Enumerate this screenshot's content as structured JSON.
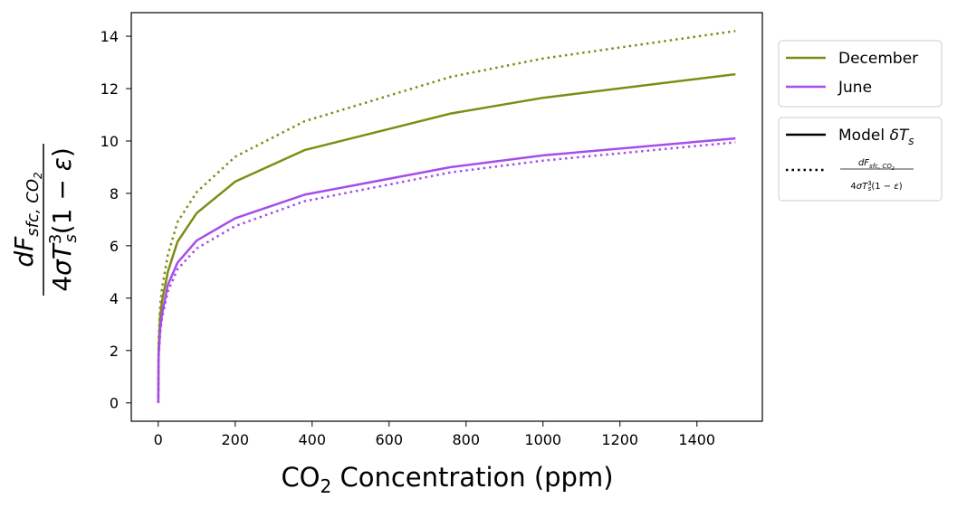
{
  "chart_data": {
    "type": "line",
    "xlabel": "CO2 Concentration (ppm)",
    "xlabel_main": "CO",
    "xlabel_sub": "2",
    "xlabel_rest": " Concentration (ppm)",
    "ylabel": "dF_{sfc,CO2} / (4σT_s^3(1−ε))",
    "xlim": [
      -70,
      1570
    ],
    "ylim": [
      -0.7,
      14.9
    ],
    "xticks": [
      0,
      200,
      400,
      600,
      800,
      1000,
      1200,
      1400
    ],
    "yticks": [
      0,
      2,
      4,
      6,
      8,
      10,
      12,
      14
    ],
    "grid": false,
    "legend_placement": "right-outside",
    "x": [
      0,
      1,
      5,
      10,
      25,
      50,
      100,
      200,
      380,
      760,
      1000,
      1500
    ],
    "series": [
      {
        "name": "December",
        "style": "solid",
        "color": "#7f8c14",
        "values": [
          0.0,
          2.1,
          3.3,
          3.9,
          5.0,
          6.15,
          7.25,
          8.45,
          9.65,
          11.05,
          11.65,
          12.55
        ]
      },
      {
        "name": "December",
        "style": "dotted",
        "color": "#7f8c14",
        "values": [
          0.0,
          2.4,
          3.7,
          4.4,
          5.65,
          6.9,
          8.05,
          9.4,
          10.75,
          12.45,
          13.15,
          14.2
        ]
      },
      {
        "name": "June",
        "style": "solid",
        "color": "#a64dea",
        "values": [
          0.0,
          1.8,
          2.8,
          3.4,
          4.5,
          5.35,
          6.2,
          7.05,
          7.95,
          9.0,
          9.45,
          10.1
        ]
      },
      {
        "name": "June",
        "style": "dotted",
        "color": "#a64dea",
        "values": [
          0.0,
          1.7,
          2.65,
          3.25,
          4.25,
          5.1,
          5.9,
          6.75,
          7.7,
          8.8,
          9.25,
          9.95
        ]
      }
    ],
    "legend_colors": [
      {
        "label": "December",
        "color": "#7f8c14"
      },
      {
        "label": "June",
        "color": "#a64dea"
      }
    ],
    "legend_styles": [
      {
        "label": "Model δT_s",
        "style": "solid",
        "color": "#000000"
      },
      {
        "label": "dF_{sfc,CO2} / (4σT_s^3(1−ε))",
        "style": "dotted",
        "color": "#000000"
      }
    ]
  }
}
